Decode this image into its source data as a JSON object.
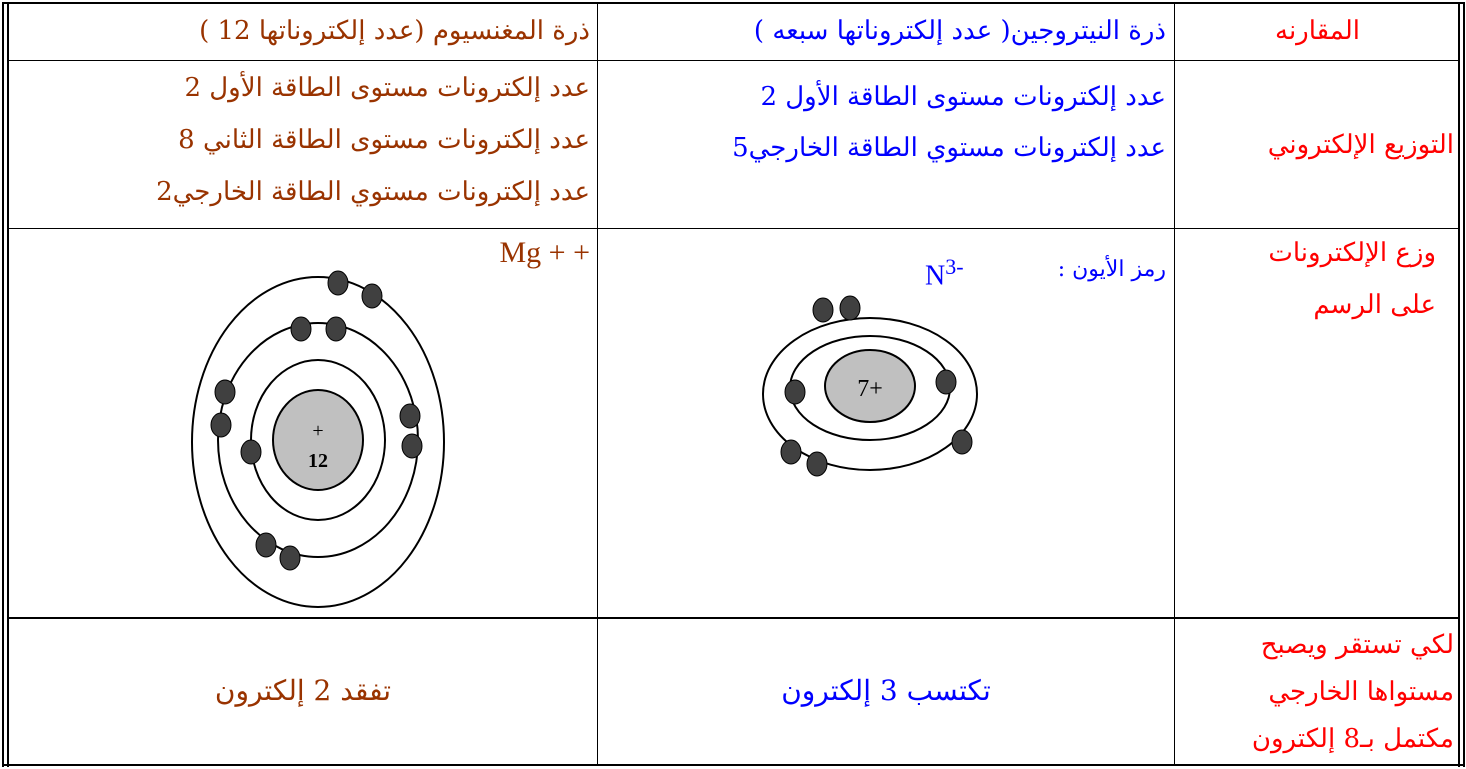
{
  "table": {
    "header": [
      "المقارنه",
      "ذرة النيتروجين( عدد إلكتروناتها سبعه )",
      "ذرة المغنسيوم (عدد إلكتروناتها 12 )"
    ],
    "rows": [
      [
        [
          "التوزيع الإلكتروني"
        ],
        [
          "عدد إلكترونات مستوى الطاقة الأول   2",
          "عدد إلكترونات مستوي الطاقة الخارجي5"
        ],
        [
          "عدد إلكترونات مستوى الطاقة الأول    2",
          "عدد إلكترونات مستوى الطاقة الثاني    8",
          "عدد إلكترونات مستوي الطاقة الخارجي2"
        ]
      ],
      [
        [
          "وزع الإلكترونات",
          "على الرسم"
        ],
        {
          "text": "رمز الأيون :",
          "symbol": "N",
          "charge": "3-",
          "nucleus": "7+"
        },
        {
          "symbol": "Mg + +",
          "nucleus_sign": "+",
          "nucleus_number": "12"
        }
      ],
      [
        [
          "لكي تستقر ويصبح",
          "مستواها الخارجي",
          "مكتمل بـ8 إلكترون"
        ],
        [
          "تكتسب 3 إلكترون"
        ],
        [
          "تفقد 2 إلكترون"
        ]
      ]
    ]
  }
}
